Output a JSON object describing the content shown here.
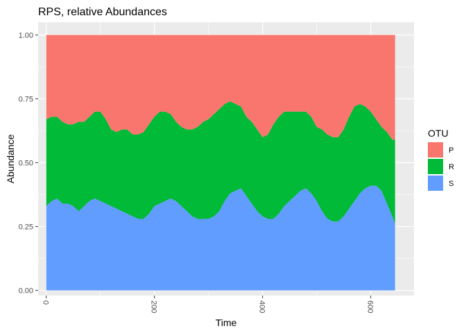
{
  "chart_data": {
    "type": "area",
    "stacked": true,
    "title": "RPS, relative Abundances",
    "xlabel": "Time",
    "ylabel": "Abundance",
    "xlim": [
      -15,
      680
    ],
    "ylim": [
      -0.02,
      1.05
    ],
    "x_ticks": [
      0,
      200,
      400,
      600
    ],
    "x_tick_labels": [
      "0",
      "200",
      "400",
      "600"
    ],
    "y_ticks": [
      0.0,
      0.25,
      0.5,
      0.75,
      1.0
    ],
    "y_tick_labels": [
      "0.00",
      "0.25",
      "0.50",
      "0.75",
      "1.00"
    ],
    "grid": true,
    "legend": {
      "title": "OTU",
      "position": "right"
    },
    "x": [
      0,
      10,
      20,
      30,
      40,
      50,
      60,
      70,
      80,
      90,
      100,
      110,
      120,
      130,
      140,
      150,
      160,
      170,
      180,
      190,
      200,
      210,
      220,
      230,
      240,
      250,
      260,
      270,
      280,
      290,
      300,
      310,
      320,
      330,
      340,
      350,
      360,
      370,
      380,
      390,
      400,
      410,
      420,
      430,
      440,
      450,
      460,
      470,
      480,
      490,
      500,
      510,
      520,
      530,
      540,
      550,
      560,
      570,
      580,
      590,
      600,
      610,
      620,
      630,
      640,
      645
    ],
    "series": [
      {
        "name": "S",
        "color": "#619CFF",
        "values": [
          0.33,
          0.35,
          0.36,
          0.34,
          0.34,
          0.33,
          0.31,
          0.33,
          0.35,
          0.36,
          0.35,
          0.34,
          0.33,
          0.32,
          0.31,
          0.3,
          0.29,
          0.28,
          0.28,
          0.3,
          0.33,
          0.34,
          0.35,
          0.36,
          0.35,
          0.33,
          0.31,
          0.29,
          0.28,
          0.28,
          0.28,
          0.29,
          0.31,
          0.35,
          0.38,
          0.39,
          0.4,
          0.37,
          0.34,
          0.31,
          0.29,
          0.28,
          0.28,
          0.3,
          0.33,
          0.35,
          0.37,
          0.39,
          0.4,
          0.38,
          0.35,
          0.31,
          0.28,
          0.27,
          0.27,
          0.29,
          0.32,
          0.35,
          0.38,
          0.4,
          0.41,
          0.41,
          0.39,
          0.34,
          0.29,
          0.26
        ]
      },
      {
        "name": "R",
        "color": "#00BA38",
        "values": [
          0.34,
          0.33,
          0.32,
          0.32,
          0.31,
          0.32,
          0.35,
          0.33,
          0.33,
          0.34,
          0.35,
          0.33,
          0.3,
          0.3,
          0.32,
          0.33,
          0.32,
          0.33,
          0.34,
          0.35,
          0.35,
          0.36,
          0.35,
          0.33,
          0.31,
          0.31,
          0.32,
          0.34,
          0.36,
          0.38,
          0.39,
          0.4,
          0.4,
          0.38,
          0.36,
          0.34,
          0.32,
          0.31,
          0.32,
          0.32,
          0.31,
          0.33,
          0.37,
          0.38,
          0.37,
          0.35,
          0.33,
          0.31,
          0.3,
          0.3,
          0.29,
          0.32,
          0.33,
          0.33,
          0.33,
          0.34,
          0.36,
          0.37,
          0.35,
          0.32,
          0.29,
          0.26,
          0.25,
          0.28,
          0.3,
          0.33
        ]
      },
      {
        "name": "P",
        "color": "#F8766D",
        "values": [
          0.33,
          0.32,
          0.32,
          0.34,
          0.35,
          0.35,
          0.34,
          0.34,
          0.32,
          0.3,
          0.3,
          0.33,
          0.37,
          0.38,
          0.37,
          0.37,
          0.39,
          0.39,
          0.38,
          0.35,
          0.32,
          0.3,
          0.3,
          0.31,
          0.34,
          0.36,
          0.37,
          0.37,
          0.36,
          0.34,
          0.33,
          0.31,
          0.29,
          0.27,
          0.26,
          0.27,
          0.28,
          0.32,
          0.34,
          0.37,
          0.4,
          0.39,
          0.35,
          0.32,
          0.3,
          0.3,
          0.3,
          0.3,
          0.3,
          0.32,
          0.36,
          0.37,
          0.39,
          0.4,
          0.4,
          0.37,
          0.32,
          0.28,
          0.27,
          0.28,
          0.3,
          0.33,
          0.36,
          0.38,
          0.41,
          0.41
        ]
      }
    ]
  }
}
